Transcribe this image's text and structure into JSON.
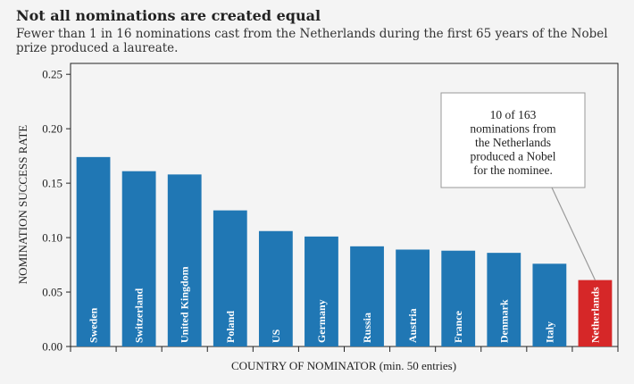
{
  "chart_data": {
    "type": "bar",
    "title": "Not all nominations are created equal",
    "subtitle": "Fewer than 1 in 16 nominations cast from the Netherlands during the first 65 years of the Nobel prize produced a laureate.",
    "xlabel": "COUNTRY OF NOMINATOR (min. 50 entries)",
    "ylabel": "NOMINATION SUCCESS RATE",
    "ylim": [
      0,
      0.26
    ],
    "yticks": [
      "0.00",
      "0.05",
      "0.10",
      "0.15",
      "0.20",
      "0.25"
    ],
    "categories": [
      "Sweden",
      "Switzerland",
      "United Kingdom",
      "Poland",
      "US",
      "Germany",
      "Russia",
      "Austria",
      "France",
      "Denmark",
      "Italy",
      "Netherlands"
    ],
    "values": [
      0.174,
      0.161,
      0.158,
      0.125,
      0.106,
      0.101,
      0.092,
      0.089,
      0.088,
      0.086,
      0.076,
      0.061
    ],
    "bar_color": "#2077b4",
    "highlight_category": "Netherlands",
    "highlight_color": "#d62728",
    "grid": false,
    "annotation": {
      "target": "Netherlands",
      "lines": [
        "10 of 163",
        "nominations from",
        "the Netherlands",
        "produced a Nobel",
        "for the nominee."
      ]
    }
  }
}
